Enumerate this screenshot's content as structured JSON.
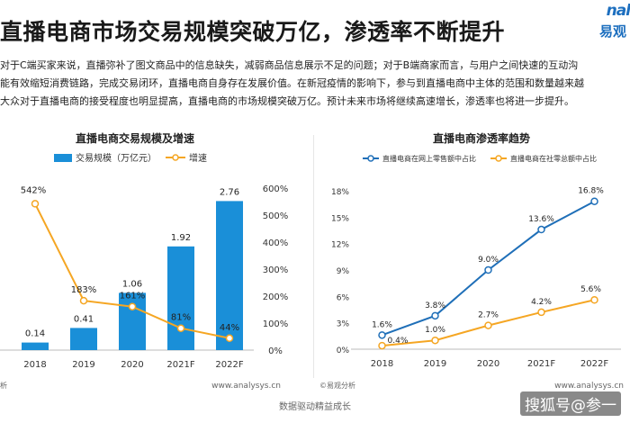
{
  "page": {
    "title": "直播电商市场交易规模突破万亿，渗透率不断提升",
    "logo_eng": "nal",
    "logo_text": "易观",
    "paragraph": [
      "对于C端买家来说，直播弥补了图文商品中的信息缺失，减弱商品信息展示不足的问题；对于B端商家而言，与用户之间快速的互动沟",
      "能有效缩短消费链路，完成交易闭环，直播电商自身存在发展价值。在新冠疫情的影响下，参与到直播电商中主体的范围和数量越来越",
      "大众对于直播电商的接受程度也明显提高，直播电商的市场规模突破万亿。预计未来市场将继续高速增长，渗透率也将进一步提升。"
    ],
    "footer": "数据驱动精益成长",
    "watermark": "搜狐号@参一"
  },
  "chart_data": [
    {
      "type": "bar",
      "title": "直播电商交易规模及增速",
      "categories": [
        "2018",
        "2019",
        "2020",
        "2021F",
        "2022F"
      ],
      "series": [
        {
          "name": "交易规模（万亿元）",
          "type": "bar",
          "axis": "left",
          "values": [
            0.14,
            0.41,
            1.06,
            1.92,
            2.76
          ],
          "labels": [
            "0.14",
            "0.41",
            "1.06",
            "1.92",
            "2.76"
          ],
          "color": "#1a8fd8"
        },
        {
          "name": "增速",
          "type": "line",
          "axis": "right",
          "values": [
            542,
            183,
            161,
            81,
            44
          ],
          "labels": [
            "542%",
            "183%",
            "161%",
            "81%",
            "44%"
          ],
          "color": "#f5a623"
        }
      ],
      "ylim": [
        0,
        3
      ],
      "y2lim": [
        0,
        600
      ],
      "y2ticks": [
        "0%",
        "100%",
        "200%",
        "300%",
        "400%",
        "500%",
        "600%"
      ],
      "legend": "top",
      "source_left": "析",
      "source_right": "www.analysys.cn"
    },
    {
      "type": "line",
      "title": "直播电商渗透率趋势",
      "categories": [
        "2018",
        "2019",
        "2020",
        "2021F",
        "2022F"
      ],
      "series": [
        {
          "name": "直播电商在网上零售额中占比",
          "values": [
            1.6,
            3.8,
            9.0,
            13.6,
            16.8
          ],
          "labels": [
            "1.6%",
            "3.8%",
            "9.0%",
            "13.6%",
            "16.8%"
          ],
          "color": "#1f6fb8"
        },
        {
          "name": "直播电商在社零总额中占比",
          "values": [
            0.4,
            1.0,
            2.7,
            4.2,
            5.6
          ],
          "labels": [
            "0.4%",
            "1.0%",
            "2.7%",
            "4.2%",
            "5.6%"
          ],
          "color": "#f5a623"
        }
      ],
      "ylim": [
        0,
        18
      ],
      "yticks": [
        "0%",
        "3%",
        "6%",
        "9%",
        "12%",
        "15%",
        "18%"
      ],
      "legend": "top",
      "source_left": "©易观分析",
      "source_right": "www.analysys.cn"
    }
  ]
}
